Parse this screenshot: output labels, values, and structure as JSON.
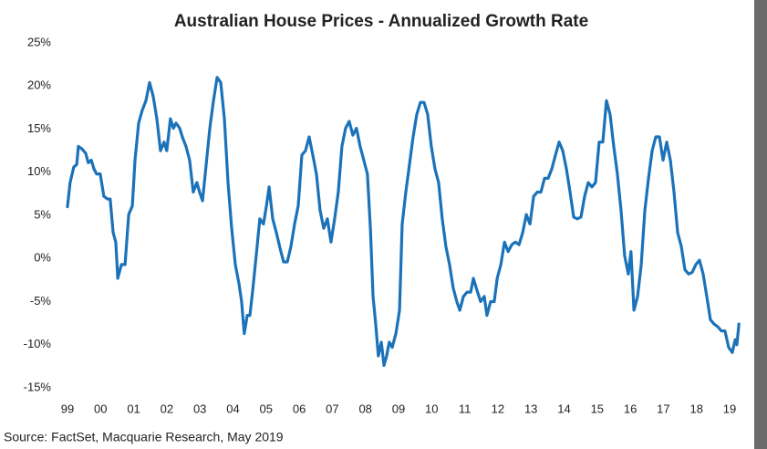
{
  "chart_data": {
    "type": "line",
    "title": "Australian House Prices - Annualized Growth Rate",
    "source": "Source: FactSet, Macquarie Research, May 2019",
    "xlim": [
      1998.8,
      2019.6
    ],
    "ylim": [
      -15,
      25
    ],
    "grid": false,
    "xticks": [
      {
        "value": 1999,
        "label": "99"
      },
      {
        "value": 2000,
        "label": "00"
      },
      {
        "value": 2001,
        "label": "01"
      },
      {
        "value": 2002,
        "label": "02"
      },
      {
        "value": 2003,
        "label": "03"
      },
      {
        "value": 2004,
        "label": "04"
      },
      {
        "value": 2005,
        "label": "05"
      },
      {
        "value": 2006,
        "label": "06"
      },
      {
        "value": 2007,
        "label": "07"
      },
      {
        "value": 2008,
        "label": "08"
      },
      {
        "value": 2009,
        "label": "09"
      },
      {
        "value": 2010,
        "label": "10"
      },
      {
        "value": 2011,
        "label": "11"
      },
      {
        "value": 2012,
        "label": "12"
      },
      {
        "value": 2013,
        "label": "13"
      },
      {
        "value": 2014,
        "label": "14"
      },
      {
        "value": 2015,
        "label": "15"
      },
      {
        "value": 2016,
        "label": "16"
      },
      {
        "value": 2017,
        "label": "17"
      },
      {
        "value": 2018,
        "label": "18"
      },
      {
        "value": 2019,
        "label": "19"
      }
    ],
    "yticks": [
      {
        "value": 25,
        "label": "25%"
      },
      {
        "value": 20,
        "label": "20%"
      },
      {
        "value": 15,
        "label": "15%"
      },
      {
        "value": 10,
        "label": "10%"
      },
      {
        "value": 5,
        "label": "5%"
      },
      {
        "value": 0,
        "label": "0%"
      },
      {
        "value": -5,
        "label": "-5%"
      },
      {
        "value": -10,
        "label": "-10%"
      },
      {
        "value": -15,
        "label": "-15%"
      }
    ],
    "x": [
      1999.0,
      1999.08,
      1999.19,
      1999.28,
      1999.33,
      1999.44,
      1999.55,
      1999.63,
      1999.72,
      1999.8,
      1999.88,
      1999.99,
      2000.1,
      2000.21,
      2000.29,
      2000.38,
      2000.46,
      2000.52,
      2000.63,
      2000.74,
      2000.85,
      2000.96,
      2001.04,
      2001.15,
      2001.26,
      2001.37,
      2001.48,
      2001.59,
      2001.7,
      2001.81,
      2001.92,
      2002.0,
      2002.11,
      2002.2,
      2002.28,
      2002.39,
      2002.47,
      2002.58,
      2002.69,
      2002.8,
      2002.91,
      2002.99,
      2003.08,
      2003.19,
      2003.3,
      2003.41,
      2003.52,
      2003.63,
      2003.74,
      2003.85,
      2003.96,
      2004.07,
      2004.18,
      2004.26,
      2004.34,
      2004.43,
      2004.51,
      2004.59,
      2004.7,
      2004.81,
      2004.92,
      2005.01,
      2005.09,
      2005.2,
      2005.31,
      2005.42,
      2005.53,
      2005.64,
      2005.75,
      2005.86,
      2005.97,
      2006.08,
      2006.19,
      2006.3,
      2006.41,
      2006.52,
      2006.63,
      2006.74,
      2006.85,
      2006.96,
      2007.07,
      2007.18,
      2007.29,
      2007.4,
      2007.51,
      2007.62,
      2007.73,
      2007.84,
      2007.95,
      2008.06,
      2008.15,
      2008.23,
      2008.31,
      2008.39,
      2008.48,
      2008.56,
      2008.64,
      2008.72,
      2008.81,
      2008.92,
      2009.03,
      2009.11,
      2009.22,
      2009.33,
      2009.44,
      2009.55,
      2009.66,
      2009.77,
      2009.88,
      2009.99,
      2010.1,
      2010.21,
      2010.32,
      2010.43,
      2010.54,
      2010.65,
      2010.76,
      2010.85,
      2010.96,
      2011.07,
      2011.18,
      2011.26,
      2011.37,
      2011.48,
      2011.59,
      2011.67,
      2011.78,
      2011.89,
      2011.98,
      2012.09,
      2012.2,
      2012.31,
      2012.42,
      2012.53,
      2012.64,
      2012.75,
      2012.86,
      2012.97,
      2013.08,
      2013.19,
      2013.3,
      2013.41,
      2013.52,
      2013.63,
      2013.74,
      2013.85,
      2013.96,
      2014.07,
      2014.18,
      2014.29,
      2014.4,
      2014.51,
      2014.62,
      2014.73,
      2014.84,
      2014.95,
      2015.06,
      2015.17,
      2015.28,
      2015.39,
      2015.5,
      2015.61,
      2015.72,
      2015.83,
      2015.94,
      2016.02,
      2016.11,
      2016.22,
      2016.33,
      2016.44,
      2016.55,
      2016.66,
      2016.77,
      2016.88,
      2016.99,
      2017.1,
      2017.21,
      2017.32,
      2017.43,
      2017.54,
      2017.65,
      2017.76,
      2017.87,
      2017.98,
      2018.09,
      2018.2,
      2018.31,
      2018.42,
      2018.53,
      2018.64,
      2018.75,
      2018.86,
      2018.97,
      2019.08,
      2019.17,
      2019.22,
      2019.28
    ],
    "series": [
      {
        "name": "Annualized Growth Rate",
        "color": "#1b72b8",
        "values": [
          6.0,
          8.8,
          10.6,
          10.9,
          13.0,
          12.7,
          12.2,
          11.1,
          11.4,
          10.4,
          9.8,
          9.8,
          7.2,
          6.9,
          6.9,
          3.0,
          1.9,
          -2.3,
          -0.7,
          -0.7,
          5.1,
          6.1,
          11.4,
          15.7,
          17.2,
          18.3,
          20.4,
          18.8,
          16.2,
          12.5,
          13.5,
          12.5,
          16.2,
          15.1,
          15.7,
          15.1,
          14.1,
          13.0,
          11.4,
          7.7,
          8.8,
          7.7,
          6.7,
          10.9,
          15.1,
          18.3,
          21.0,
          20.4,
          16.2,
          8.8,
          3.5,
          -0.7,
          -2.9,
          -5.0,
          -8.7,
          -6.6,
          -6.6,
          -3.9,
          0.3,
          4.6,
          4.0,
          6.1,
          8.3,
          4.6,
          3.0,
          1.2,
          -0.4,
          -0.4,
          1.4,
          4.0,
          6.1,
          12.0,
          12.5,
          14.1,
          12.0,
          9.8,
          5.6,
          3.5,
          4.6,
          1.9,
          4.6,
          7.7,
          13.0,
          15.1,
          15.9,
          14.3,
          15.1,
          13.0,
          11.4,
          9.8,
          3.5,
          -4.4,
          -7.6,
          -11.3,
          -9.7,
          -12.4,
          -11.3,
          -9.7,
          -10.3,
          -8.7,
          -6.0,
          4.0,
          7.7,
          10.9,
          14.1,
          16.7,
          18.1,
          18.1,
          16.7,
          13.0,
          10.4,
          8.8,
          4.6,
          1.4,
          -0.7,
          -3.4,
          -5.0,
          -6.0,
          -4.4,
          -3.9,
          -3.9,
          -2.3,
          -3.7,
          -5.0,
          -4.4,
          -6.6,
          -5.0,
          -5.0,
          -2.3,
          -0.7,
          1.9,
          0.8,
          1.6,
          1.9,
          1.6,
          3.0,
          5.1,
          4.0,
          7.2,
          7.7,
          7.7,
          9.3,
          9.3,
          10.4,
          12.0,
          13.5,
          12.5,
          10.4,
          7.7,
          4.8,
          4.6,
          4.8,
          7.2,
          8.8,
          8.3,
          8.8,
          13.5,
          13.5,
          18.3,
          16.7,
          13.0,
          9.8,
          5.6,
          0.3,
          -1.8,
          0.8,
          -6.0,
          -4.4,
          -0.7,
          5.6,
          9.3,
          12.5,
          14.1,
          14.1,
          11.4,
          13.5,
          11.4,
          7.7,
          3.0,
          1.4,
          -1.3,
          -1.8,
          -1.6,
          -0.7,
          -0.2,
          -1.8,
          -4.4,
          -7.1,
          -7.6,
          -7.9,
          -8.4,
          -8.4,
          -10.3,
          -10.9,
          -9.4,
          -10.0,
          -7.6
        ]
      }
    ]
  }
}
